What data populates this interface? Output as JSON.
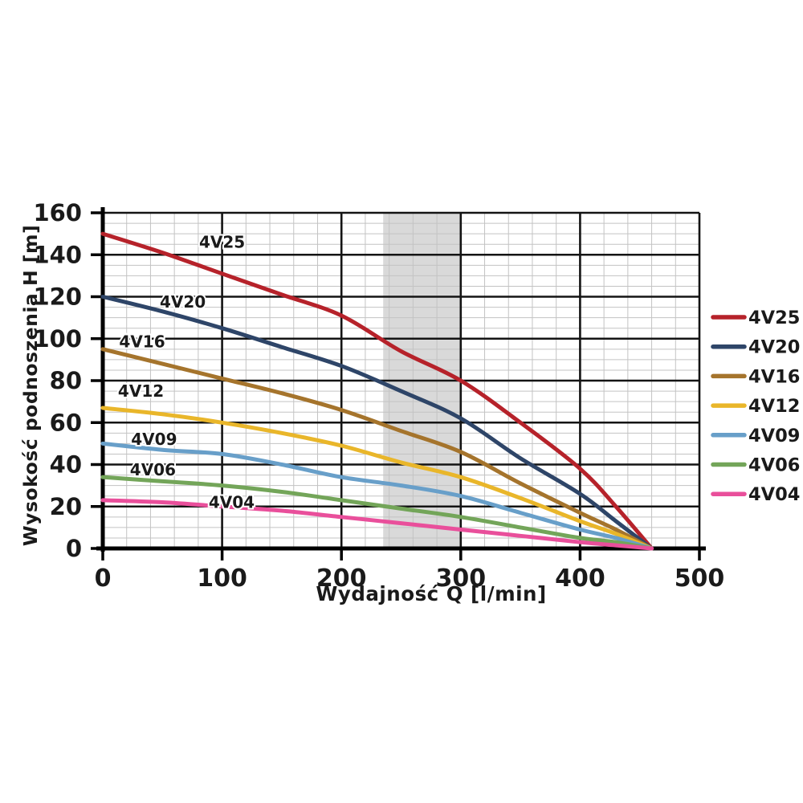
{
  "chart_data": {
    "type": "line",
    "title": "",
    "xlabel": "Wydajność Q [l/min]",
    "ylabel": "Wysokość podnoszenia H [m]",
    "xlim": [
      0,
      500
    ],
    "ylim": [
      0,
      160
    ],
    "x_ticks": [
      0,
      100,
      200,
      300,
      400,
      500
    ],
    "y_ticks": [
      0,
      20,
      40,
      60,
      80,
      100,
      120,
      140,
      160
    ],
    "x_minor_step": 20,
    "y_minor_step": 5,
    "grid": "major and minor, gray minor lines, thick black major lines",
    "legend_position": "right",
    "highlight_band": {
      "x_from": 235,
      "x_to": 300,
      "color": "#d9d9d9"
    },
    "x": [
      0,
      50,
      100,
      150,
      200,
      250,
      300,
      350,
      400,
      430,
      460
    ],
    "series": [
      {
        "name": "4V25",
        "color": "#b6222a",
        "values": [
          150,
          141,
          131,
          121,
          111,
          94,
          80,
          60,
          38,
          20,
          0
        ],
        "label": {
          "x": 100,
          "y": 146
        }
      },
      {
        "name": "4V20",
        "color": "#2e4568",
        "values": [
          120,
          113,
          105,
          96,
          87,
          75,
          62,
          43,
          26,
          13,
          0
        ],
        "label": {
          "x": 67,
          "y": 117.5
        }
      },
      {
        "name": "4V16",
        "color": "#a5742c",
        "values": [
          95,
          88,
          81,
          74,
          66,
          56,
          46,
          31,
          17,
          9,
          0
        ],
        "label": {
          "x": 33,
          "y": 98.5
        }
      },
      {
        "name": "4V12",
        "color": "#e9b62a",
        "values": [
          67,
          64,
          60,
          55,
          49,
          41,
          34,
          24,
          13,
          7,
          0
        ],
        "label": {
          "x": 32,
          "y": 75
        }
      },
      {
        "name": "4V09",
        "color": "#689fc9",
        "values": [
          50,
          47,
          45,
          40,
          34,
          30,
          25,
          17,
          9,
          5,
          0
        ],
        "label": {
          "x": 43,
          "y": 52
        }
      },
      {
        "name": "4V06",
        "color": "#73a559",
        "values": [
          34,
          32,
          30,
          27,
          23,
          19,
          15,
          10,
          5,
          3,
          0
        ],
        "label": {
          "x": 42,
          "y": 37.5
        }
      },
      {
        "name": "4V04",
        "color": "#e94f9b",
        "values": [
          23,
          22,
          20,
          18,
          15,
          12,
          9,
          6,
          3,
          1.5,
          0
        ],
        "label": {
          "x": 108,
          "y": 22
        }
      }
    ],
    "colors": {
      "major_grid": "#141414",
      "minor_grid": "#c3c3c3",
      "axis": "#000000",
      "band": "#d9d9d9",
      "text": "#1a1a1a"
    }
  }
}
